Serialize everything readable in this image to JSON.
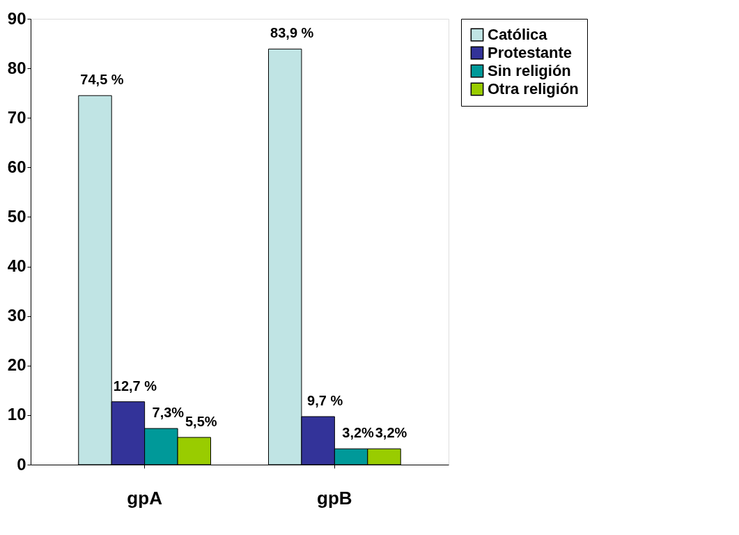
{
  "chart_data": {
    "type": "bar",
    "categories": [
      "gpA",
      "gpB"
    ],
    "series": [
      {
        "name": "Católica",
        "color": "#c0e4e4",
        "values": [
          74.5,
          83.9
        ],
        "value_labels": [
          "74,5 %",
          "83,9 %"
        ]
      },
      {
        "name": "Protestante",
        "color": "#333399",
        "values": [
          12.7,
          9.7
        ],
        "value_labels": [
          "12,7 %",
          "9,7 %"
        ]
      },
      {
        "name": "Sin religión",
        "color": "#009999",
        "values": [
          7.3,
          3.2
        ],
        "value_labels": [
          "7,3%",
          "3,2%"
        ]
      },
      {
        "name": "Otra religión",
        "color": "#99cc00",
        "values": [
          5.5,
          3.2
        ],
        "value_labels": [
          "5,5%",
          "3,2%"
        ]
      }
    ],
    "ylim": [
      0,
      90
    ],
    "yticks": [
      0,
      10,
      20,
      30,
      40,
      50,
      60,
      70,
      80,
      90
    ],
    "grid": false,
    "legend": "right"
  }
}
